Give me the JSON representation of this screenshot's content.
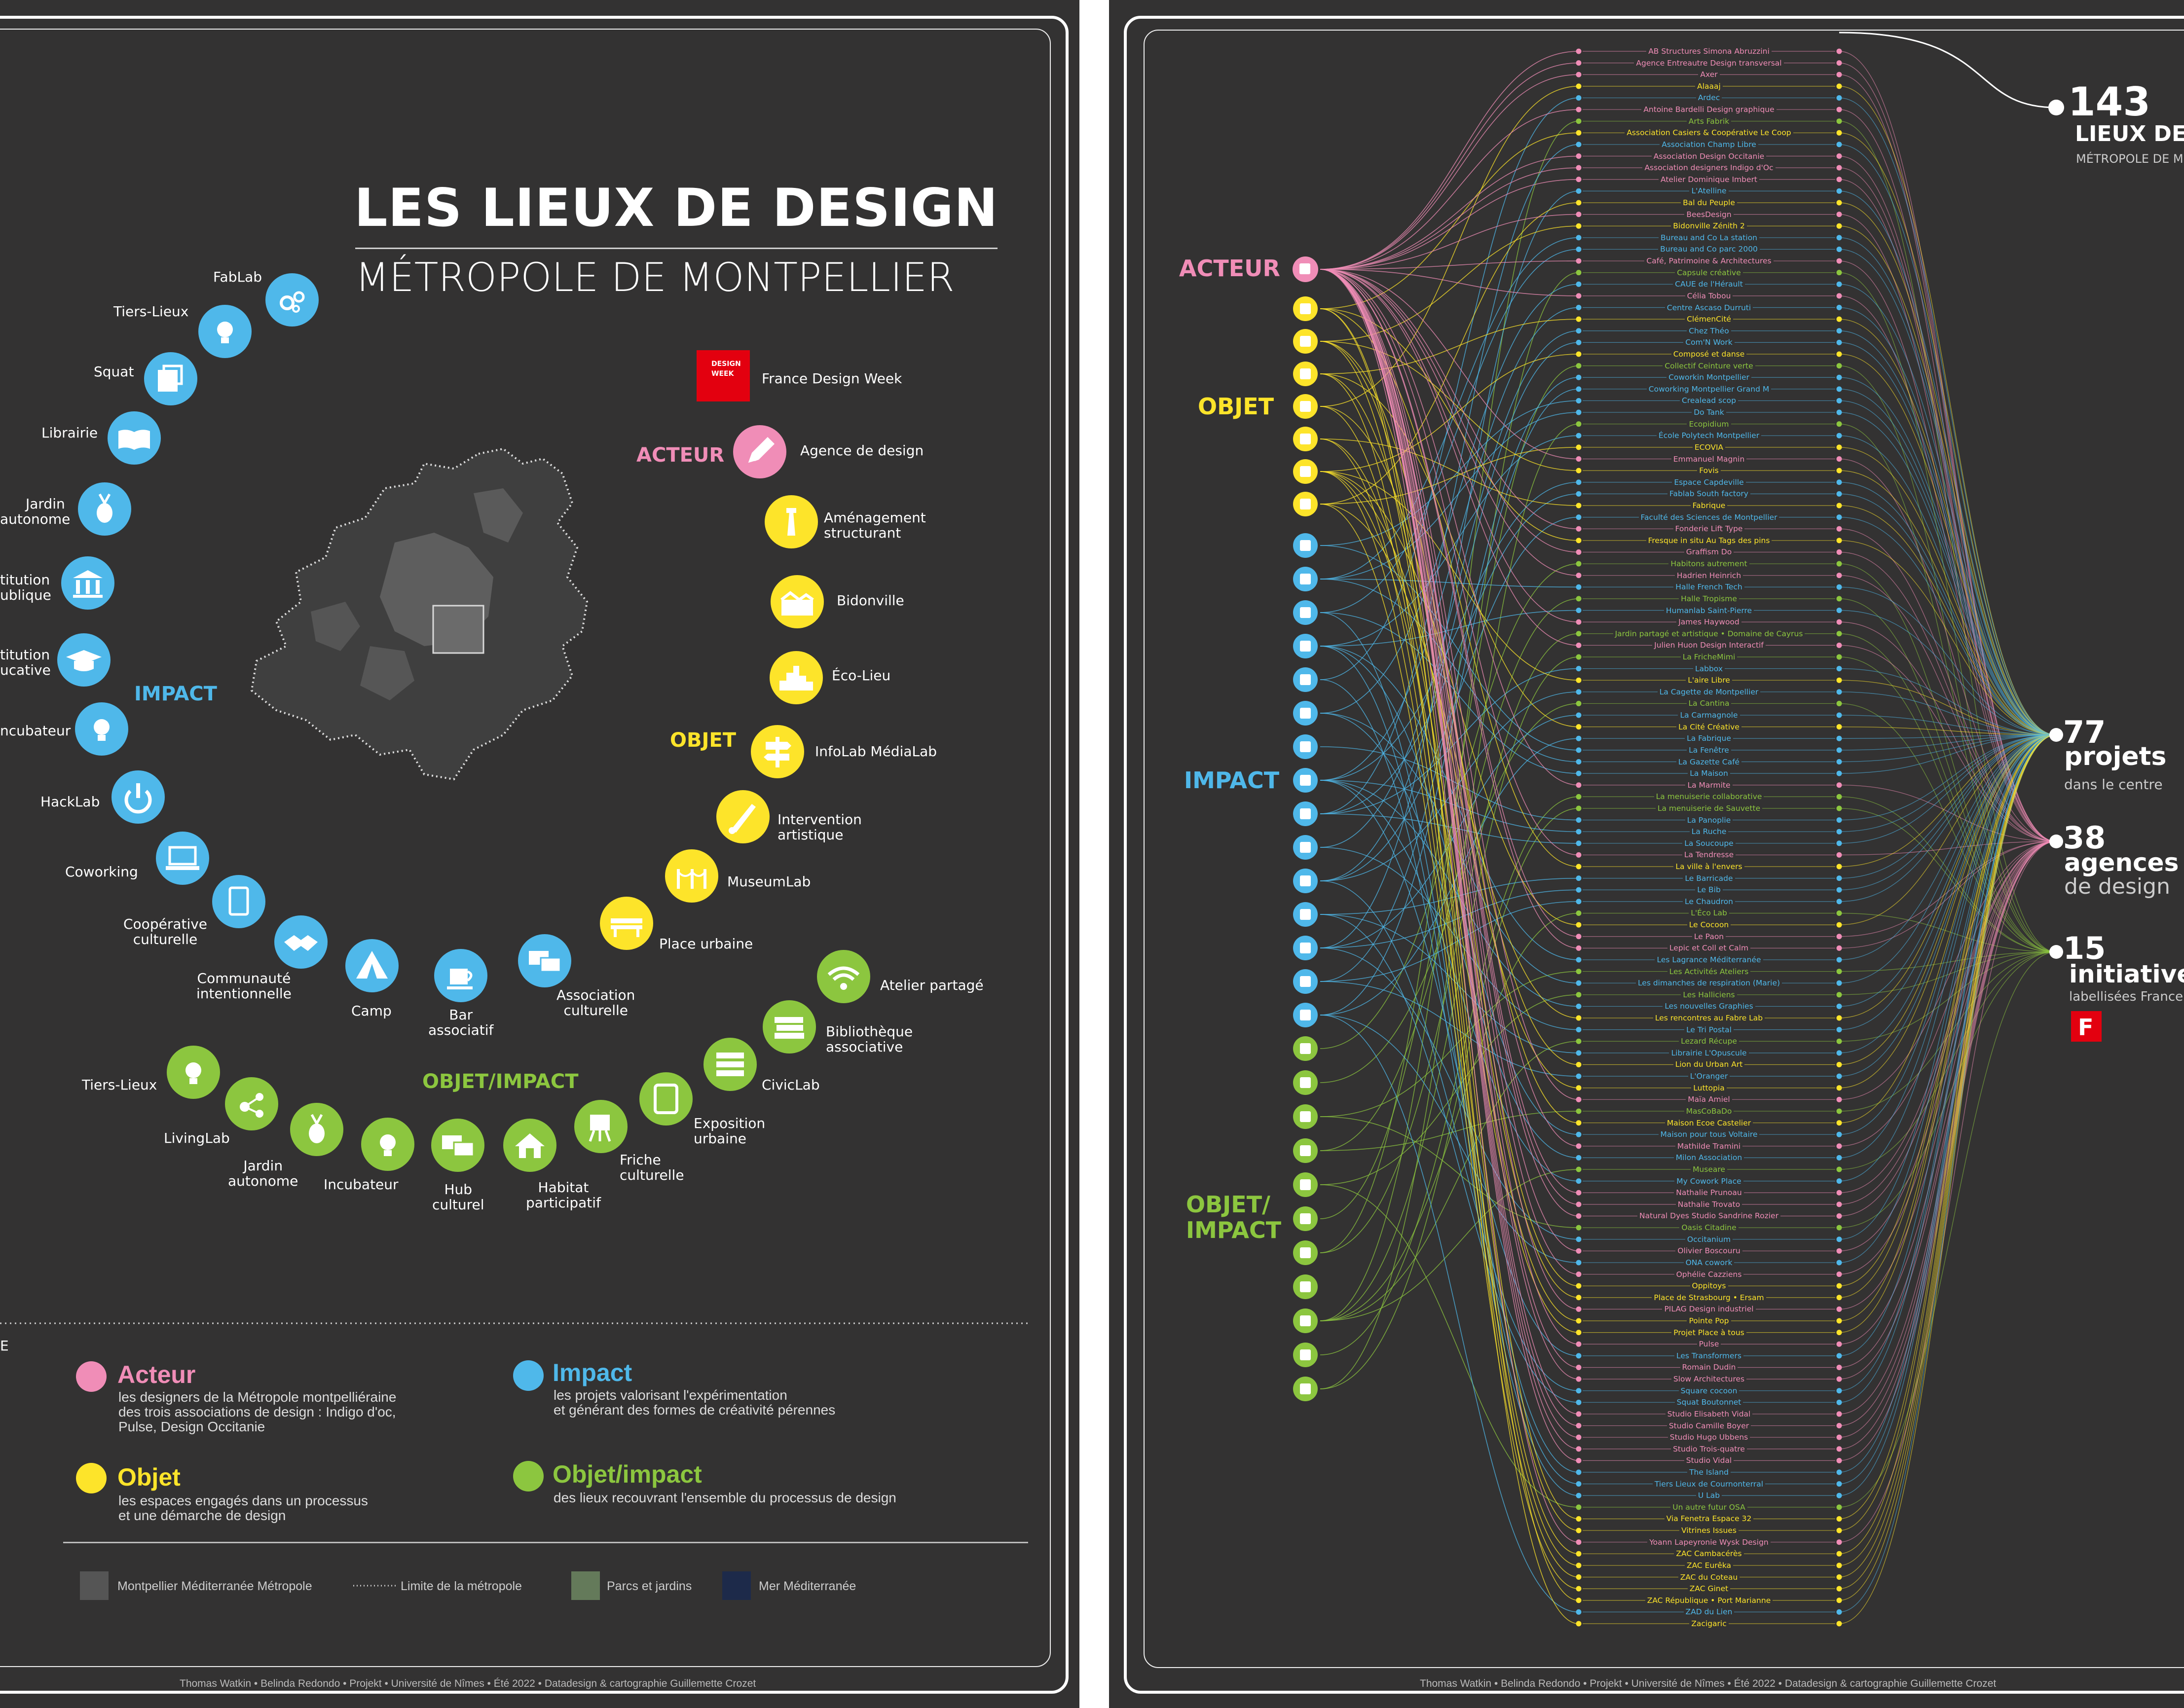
{
  "title": "LES LIEUX DE DESIGN",
  "subtitle": "MÉTROPOLE DE MONTPELLIER",
  "brand": {
    "name": "France Design Week",
    "logo_text": [
      "DESIGN",
      "WEEK"
    ]
  },
  "colors": {
    "acteur": "#f08db7",
    "objet": "#fde42a",
    "impact": "#4fb8ea",
    "objet_impact": "#8cc63f",
    "background": "#333232"
  },
  "categories": {
    "acteur": "ACTEUR",
    "objet": "OBJET",
    "impact": "IMPACT",
    "objet_impact": "OBJET/IMPACT",
    "objet_impact_lines": [
      "OBJET/",
      "IMPACT"
    ]
  },
  "types": {
    "acteur": [
      {
        "label": "Agence de design",
        "icon": "pencil-icon"
      }
    ],
    "objet": [
      {
        "label": "Aménagement structurant",
        "lines": [
          "Aménagement",
          "structurant"
        ],
        "icon": "lighthouse-icon"
      },
      {
        "label": "Bidonville",
        "icon": "shanty-icon"
      },
      {
        "label": "Éco-Lieu",
        "icon": "eco-city-icon"
      },
      {
        "label": "InfoLab MédiaLab",
        "icon": "signpost-icon"
      },
      {
        "label": "Intervention artistique",
        "lines": [
          "Intervention",
          "artistique"
        ],
        "icon": "brush-icon"
      },
      {
        "label": "MuseumLab",
        "icon": "museum-rope-icon"
      },
      {
        "label": "Place urbaine",
        "icon": "bench-icon"
      }
    ],
    "impact": [
      {
        "label": "FabLab",
        "icon": "gears-icon"
      },
      {
        "label": "Tiers-Lieux",
        "icon": "lightbulb-icon"
      },
      {
        "label": "Squat",
        "icon": "squat-icon"
      },
      {
        "label": "Librairie",
        "icon": "book-icon"
      },
      {
        "label": "Jardin autonome",
        "lines": [
          "Jardin",
          "autonome"
        ],
        "icon": "radish-icon"
      },
      {
        "label": "Institution publique",
        "lines": [
          "titution",
          "ublique"
        ],
        "icon": "columns-icon"
      },
      {
        "label": "Institution éducative",
        "lines": [
          "titution",
          "ucative"
        ],
        "icon": "graduation-cap-icon"
      },
      {
        "label": "Incubateur",
        "lines": [
          "ncubateur"
        ],
        "icon": "lightbulb-icon"
      },
      {
        "label": "HackLab",
        "icon": "power-icon"
      },
      {
        "label": "Coworking",
        "icon": "laptop-icon"
      },
      {
        "label": "Coopérative culturelle",
        "lines": [
          "Coopérative",
          "culturelle"
        ],
        "icon": "tablet-icon"
      },
      {
        "label": "Communauté intentionnelle",
        "lines": [
          "Communauté",
          "intentionnelle"
        ],
        "icon": "handshake-icon"
      },
      {
        "label": "Camp",
        "icon": "tent-icon"
      },
      {
        "label": "Bar associatif",
        "lines": [
          "Bar",
          "associatif"
        ],
        "icon": "cup-icon"
      },
      {
        "label": "Association culturelle",
        "lines": [
          "Association",
          "culturelle"
        ],
        "icon": "chat-icon"
      }
    ],
    "objet_impact": [
      {
        "label": "Atelier partagé",
        "icon": "wifi-icon"
      },
      {
        "label": "Bibliothèque associative",
        "lines": [
          "Bibliothèque",
          "associative"
        ],
        "icon": "books-icon"
      },
      {
        "label": "CivicLab",
        "icon": "server-icon"
      },
      {
        "label": "Exposition urbaine",
        "lines": [
          "Exposition",
          "urbaine"
        ],
        "icon": "frame-icon"
      },
      {
        "label": "Friche culturelle",
        "lines": [
          "Friche",
          "culturelle"
        ],
        "icon": "easel-icon"
      },
      {
        "label": "Habitat participatif",
        "lines": [
          "Habitat",
          "participatif"
        ],
        "icon": "house-icon"
      },
      {
        "label": "Hub culturel",
        "lines": [
          "Hub",
          "culturel"
        ],
        "icon": "chat-icon"
      },
      {
        "label": "Incubateur",
        "icon": "lightbulb-icon"
      },
      {
        "label": "Jardin autonome",
        "lines": [
          "Jardin",
          "autonome"
        ],
        "icon": "radish-icon"
      },
      {
        "label": "LivingLab",
        "icon": "network-icon"
      },
      {
        "label": "Tiers-Lieux",
        "icon": "lightbulb-icon"
      }
    ]
  },
  "legend": [
    {
      "key": "acteur",
      "title": "Acteur",
      "desc": "les designers de la Métropole montpelliéraine\ndes trois associations de design : Indigo d'oc,\nPulse, Design Occitanie"
    },
    {
      "key": "impact",
      "title": "Impact",
      "desc": "les projets valorisant l'expérimentation\net générant des formes de créativité pérennes"
    },
    {
      "key": "objet",
      "title": "Objet",
      "desc": "les espaces engagés dans un processus\net une démarche de design"
    },
    {
      "key": "objet_impact",
      "title": "Objet/impact",
      "desc": "des lieux recouvrant l'ensemble du processus de design"
    }
  ],
  "legend_heading_fragment": "E",
  "map_key": [
    {
      "label": "Montpellier Méditerranée Métropole",
      "color": "#555555"
    },
    {
      "label": "Limite de la métropole",
      "style": "dotted"
    },
    {
      "label": "Parcs et jardins",
      "color": "#647a5a"
    },
    {
      "label": "Mer Méditerranée",
      "color": "#1d2a4a"
    }
  ],
  "footer": "Thomas Watkin • Belinda Redondo • Projekt • Université de Nîmes • Été 2022 • Datadesign & cartographie Guillemette Crozet",
  "stats": [
    {
      "number": "143",
      "label": "LIEUX DE",
      "sub": "MÉTROPOLE DE M"
    },
    {
      "number": "77",
      "label": "projets",
      "sub": "dans le centre"
    },
    {
      "number": "38",
      "label": "agences",
      "sub": "de design"
    },
    {
      "number": "15",
      "label": "initiatives",
      "sub": "labellisées France"
    }
  ],
  "stat_logo_letter": "F",
  "places": [
    {
      "name": "AB Structures Simona Abruzzini",
      "cat": "acteur"
    },
    {
      "name": "Agence Entreautre Design transversal",
      "cat": "acteur"
    },
    {
      "name": "Axer",
      "cat": "acteur"
    },
    {
      "name": "Alaaaj",
      "cat": "objet"
    },
    {
      "name": "Ardec",
      "cat": "impact"
    },
    {
      "name": "Antoine Bardelli Design graphique",
      "cat": "acteur"
    },
    {
      "name": "Arts Fabrik",
      "cat": "objet_impact"
    },
    {
      "name": "Association Casiers & Coopérative Le Coop",
      "cat": "objet"
    },
    {
      "name": "Association Champ Libre",
      "cat": "impact"
    },
    {
      "name": "Association Design Occitanie",
      "cat": "acteur"
    },
    {
      "name": "Association designers Indigo d'Oc",
      "cat": "acteur"
    },
    {
      "name": "Atelier Dominique Imbert",
      "cat": "acteur"
    },
    {
      "name": "L'Atelline",
      "cat": "impact"
    },
    {
      "name": "Bal du Peuple",
      "cat": "objet"
    },
    {
      "name": "BeesDesign",
      "cat": "acteur"
    },
    {
      "name": "Bidonville Zénith 2",
      "cat": "objet"
    },
    {
      "name": "Bureau and Co La station",
      "cat": "impact"
    },
    {
      "name": "Bureau and Co parc 2000",
      "cat": "impact"
    },
    {
      "name": "Café, Patrimoine & Architectures",
      "cat": "acteur"
    },
    {
      "name": "Capsule créative",
      "cat": "objet_impact"
    },
    {
      "name": "CAUE de l'Hérault",
      "cat": "impact"
    },
    {
      "name": "Célia Tobou",
      "cat": "acteur"
    },
    {
      "name": "Centre Ascaso Durruti",
      "cat": "impact"
    },
    {
      "name": "ClémenCité",
      "cat": "objet"
    },
    {
      "name": "Chez Théo",
      "cat": "impact"
    },
    {
      "name": "Com'N Work",
      "cat": "impact"
    },
    {
      "name": "Composé et danse",
      "cat": "objet"
    },
    {
      "name": "Collectif Ceinture verte",
      "cat": "objet_impact"
    },
    {
      "name": "Coworkin Montpellier",
      "cat": "impact"
    },
    {
      "name": "Coworking Montpellier Grand M",
      "cat": "impact"
    },
    {
      "name": "Crealead scop",
      "cat": "impact"
    },
    {
      "name": "Do Tank",
      "cat": "impact"
    },
    {
      "name": "Ecopidium",
      "cat": "objet_impact"
    },
    {
      "name": "École Polytech Montpellier",
      "cat": "impact"
    },
    {
      "name": "ECOVIA",
      "cat": "objet"
    },
    {
      "name": "Emmanuel Magnin",
      "cat": "acteur"
    },
    {
      "name": "Fovis",
      "cat": "objet"
    },
    {
      "name": "Espace Capdeville",
      "cat": "impact"
    },
    {
      "name": "Fablab South factory",
      "cat": "impact"
    },
    {
      "name": "Fabrique",
      "cat": "objet"
    },
    {
      "name": "Faculté des Sciences de Montpellier",
      "cat": "impact"
    },
    {
      "name": "Fonderie Lift Type",
      "cat": "acteur"
    },
    {
      "name": "Fresque in situ Au Tags des pins",
      "cat": "objet"
    },
    {
      "name": "Graffism Do",
      "cat": "acteur"
    },
    {
      "name": "Habitons autrement",
      "cat": "objet_impact"
    },
    {
      "name": "Hadrien Heinrich",
      "cat": "acteur"
    },
    {
      "name": "Halle French Tech",
      "cat": "impact"
    },
    {
      "name": "Halle Tropisme",
      "cat": "objet_impact"
    },
    {
      "name": "Humanlab Saint-Pierre",
      "cat": "impact"
    },
    {
      "name": "James Haywood",
      "cat": "acteur"
    },
    {
      "name": "Jardin partagé et artistique • Domaine de Cayrus",
      "cat": "objet_impact"
    },
    {
      "name": "Julien Huon Design Interactif",
      "cat": "acteur"
    },
    {
      "name": "La FricheMimi",
      "cat": "objet_impact"
    },
    {
      "name": "Labbox",
      "cat": "impact"
    },
    {
      "name": "L'aire Libre",
      "cat": "objet"
    },
    {
      "name": "La Cagette de Montpellier",
      "cat": "impact"
    },
    {
      "name": "La Cantina",
      "cat": "objet_impact"
    },
    {
      "name": "La Carmagnole",
      "cat": "impact"
    },
    {
      "name": "La Cité Créative",
      "cat": "objet"
    },
    {
      "name": "La Fabrique",
      "cat": "impact"
    },
    {
      "name": "La Fenêtre",
      "cat": "impact"
    },
    {
      "name": "La Gazette Café",
      "cat": "impact"
    },
    {
      "name": "La Maison",
      "cat": "impact"
    },
    {
      "name": "La Marmite",
      "cat": "acteur"
    },
    {
      "name": "La menuiserie collaborative",
      "cat": "objet_impact"
    },
    {
      "name": "La menuiserie de Sauvette",
      "cat": "objet_impact"
    },
    {
      "name": "La Panoplie",
      "cat": "impact"
    },
    {
      "name": "La Ruche",
      "cat": "impact"
    },
    {
      "name": "La Soucoupe",
      "cat": "impact"
    },
    {
      "name": "La Tendresse",
      "cat": "acteur"
    },
    {
      "name": "La ville à l'envers",
      "cat": "objet"
    },
    {
      "name": "Le Barricade",
      "cat": "impact"
    },
    {
      "name": "Le Bib",
      "cat": "impact"
    },
    {
      "name": "Le Chaudron",
      "cat": "impact"
    },
    {
      "name": "L'Éco Lab",
      "cat": "objet_impact"
    },
    {
      "name": "Le Cocoon",
      "cat": "objet"
    },
    {
      "name": "Le Paon",
      "cat": "acteur"
    },
    {
      "name": "Lepic et Coll et Calm",
      "cat": "acteur"
    },
    {
      "name": "Les Lagrance Méditerranée",
      "cat": "impact"
    },
    {
      "name": "Les Activités Ateliers",
      "cat": "objet_impact"
    },
    {
      "name": "Les dimanches de respiration (Marie)",
      "cat": "impact"
    },
    {
      "name": "Les Halliciens",
      "cat": "objet_impact"
    },
    {
      "name": "Les nouvelles Graphies",
      "cat": "impact"
    },
    {
      "name": "Les rencontres au Fabre Lab",
      "cat": "objet"
    },
    {
      "name": "Le Tri Postal",
      "cat": "impact"
    },
    {
      "name": "Lezard Récupe",
      "cat": "objet_impact"
    },
    {
      "name": "Librairie L'Opuscule",
      "cat": "impact"
    },
    {
      "name": "Lion du Urban Art",
      "cat": "objet"
    },
    {
      "name": "L'Oranger",
      "cat": "impact"
    },
    {
      "name": "Luttopia",
      "cat": "objet"
    },
    {
      "name": "Maïa Amiel",
      "cat": "acteur"
    },
    {
      "name": "MasCoBaDo",
      "cat": "objet_impact"
    },
    {
      "name": "Maison Ecoe Castelier",
      "cat": "objet"
    },
    {
      "name": "Maison pour tous Voltaire",
      "cat": "impact"
    },
    {
      "name": "Mathilde Tramini",
      "cat": "acteur"
    },
    {
      "name": "Milon Association",
      "cat": "impact"
    },
    {
      "name": "Museare",
      "cat": "objet_impact"
    },
    {
      "name": "My Cowork Place",
      "cat": "impact"
    },
    {
      "name": "Nathalie Prunoau",
      "cat": "acteur"
    },
    {
      "name": "Nathalie Trovato",
      "cat": "acteur"
    },
    {
      "name": "Natural Dyes Studio Sandrine Rozier",
      "cat": "acteur"
    },
    {
      "name": "Oasis Citadine",
      "cat": "objet_impact"
    },
    {
      "name": "Occitanium",
      "cat": "impact"
    },
    {
      "name": "Olivier Boscouru",
      "cat": "acteur"
    },
    {
      "name": "ONA cowork",
      "cat": "impact"
    },
    {
      "name": "Ophélie Cazziens",
      "cat": "acteur"
    },
    {
      "name": "Oppitoys",
      "cat": "objet"
    },
    {
      "name": "Place de Strasbourg • Ersam",
      "cat": "objet"
    },
    {
      "name": "PILAG Design industriel",
      "cat": "acteur"
    },
    {
      "name": "Pointe Pop",
      "cat": "objet"
    },
    {
      "name": "Projet Place à tous",
      "cat": "objet"
    },
    {
      "name": "Pulse",
      "cat": "acteur"
    },
    {
      "name": "Les Transformers",
      "cat": "impact"
    },
    {
      "name": "Romain Dudin",
      "cat": "acteur"
    },
    {
      "name": "Slow Architectures",
      "cat": "acteur"
    },
    {
      "name": "Square cocoon",
      "cat": "impact"
    },
    {
      "name": "Squat Boutonnet",
      "cat": "impact"
    },
    {
      "name": "Studio Elisabeth Vidal",
      "cat": "acteur"
    },
    {
      "name": "Studio Camille Boyer",
      "cat": "acteur"
    },
    {
      "name": "Studio Hugo Ubbens",
      "cat": "acteur"
    },
    {
      "name": "Studio Trois-quatre",
      "cat": "acteur"
    },
    {
      "name": "Studio Vidal",
      "cat": "acteur"
    },
    {
      "name": "The Island",
      "cat": "impact"
    },
    {
      "name": "Tiers Lieux de Cournonterral",
      "cat": "impact"
    },
    {
      "name": "U Lab",
      "cat": "impact"
    },
    {
      "name": "Un autre futur OSA",
      "cat": "objet_impact"
    },
    {
      "name": "Via Fenetra Espace 32",
      "cat": "objet"
    },
    {
      "name": "Vitrines Issues",
      "cat": "objet"
    },
    {
      "name": "Yoann Lapeyronie Wysk Design",
      "cat": "acteur"
    },
    {
      "name": "ZAC Cambacérès",
      "cat": "objet"
    },
    {
      "name": "ZAC Eurêka",
      "cat": "objet"
    },
    {
      "name": "ZAC du Coteau",
      "cat": "objet"
    },
    {
      "name": "ZAC Ginet",
      "cat": "objet"
    },
    {
      "name": "ZAC République • Port Marianne",
      "cat": "objet"
    },
    {
      "name": "ZAD du Lien",
      "cat": "impact"
    },
    {
      "name": "Zacigaric",
      "cat": "objet"
    }
  ]
}
